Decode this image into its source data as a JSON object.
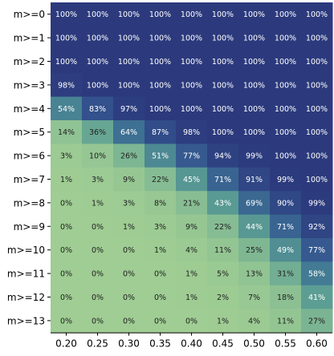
{
  "chart_data": {
    "type": "heatmap",
    "title": "",
    "xlabel": "",
    "ylabel": "",
    "x_categories": [
      "0.20",
      "0.25",
      "0.30",
      "0.35",
      "0.40",
      "0.45",
      "0.50",
      "0.55",
      "0.60"
    ],
    "y_categories": [
      "m>=0",
      "m>=1",
      "m>=2",
      "m>=3",
      "m>=4",
      "m>=5",
      "m>=6",
      "m>=7",
      "m>=8",
      "m>=9",
      "m>=10",
      "m>=11",
      "m>=12",
      "m>=13"
    ],
    "values": [
      [
        100,
        100,
        100,
        100,
        100,
        100,
        100,
        100,
        100
      ],
      [
        100,
        100,
        100,
        100,
        100,
        100,
        100,
        100,
        100
      ],
      [
        100,
        100,
        100,
        100,
        100,
        100,
        100,
        100,
        100
      ],
      [
        98,
        100,
        100,
        100,
        100,
        100,
        100,
        100,
        100
      ],
      [
        54,
        83,
        97,
        100,
        100,
        100,
        100,
        100,
        100
      ],
      [
        14,
        36,
        64,
        87,
        98,
        100,
        100,
        100,
        100
      ],
      [
        3,
        10,
        26,
        51,
        77,
        94,
        99,
        100,
        100
      ],
      [
        1,
        3,
        9,
        22,
        45,
        71,
        91,
        99,
        100
      ],
      [
        0,
        1,
        3,
        8,
        21,
        43,
        69,
        90,
        99
      ],
      [
        0,
        0,
        1,
        3,
        9,
        22,
        44,
        71,
        92
      ],
      [
        0,
        0,
        0,
        1,
        4,
        11,
        25,
        49,
        77
      ],
      [
        0,
        0,
        0,
        0,
        1,
        5,
        13,
        31,
        58
      ],
      [
        0,
        0,
        0,
        0,
        1,
        2,
        7,
        18,
        41
      ],
      [
        0,
        0,
        0,
        0,
        0,
        1,
        4,
        11,
        27
      ]
    ],
    "value_suffix": "%",
    "value_range": [
      0,
      100
    ],
    "colorscale": [
      "#9fcd93",
      "#8abf93",
      "#5ea093",
      "#3f7793",
      "#34558f",
      "#2c3a7d"
    ],
    "text_color_dark": "#222222",
    "text_color_light": "#ffffff",
    "grid": false,
    "legend": "none"
  }
}
